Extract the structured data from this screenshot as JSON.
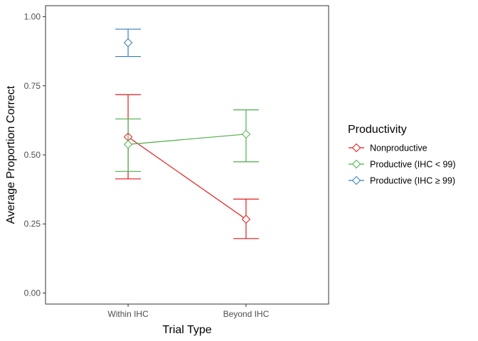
{
  "chart_data": {
    "type": "line",
    "xlabel": "Trial Type",
    "ylabel": "Average Proportion Correct",
    "categories": [
      "Within IHC",
      "Beyond IHC"
    ],
    "ylim": [
      -0.04,
      1.04
    ],
    "yticks": [
      0.0,
      0.25,
      0.5,
      0.75,
      1.0
    ],
    "ytick_labels": [
      "0.00",
      "0.25",
      "0.50",
      "0.75",
      "1.00"
    ],
    "grid": false,
    "legend": {
      "title": "Productivity",
      "position": "right"
    },
    "series": [
      {
        "name": "Nonproductive",
        "color": "#e41a1c",
        "points": [
          {
            "x": "Within IHC",
            "y": 0.565,
            "ymin": 0.413,
            "ymax": 0.718
          },
          {
            "x": "Beyond IHC",
            "y": 0.267,
            "ymin": 0.197,
            "ymax": 0.34
          }
        ]
      },
      {
        "name": "Productive (IHC < 99)",
        "color": "#4daf4a",
        "points": [
          {
            "x": "Within IHC",
            "y": 0.538,
            "ymin": 0.44,
            "ymax": 0.63
          },
          {
            "x": "Beyond IHC",
            "y": 0.575,
            "ymin": 0.475,
            "ymax": 0.663
          }
        ]
      },
      {
        "name": "Productive (IHC ≥ 99)",
        "color": "#377eb8",
        "points": [
          {
            "x": "Within IHC",
            "y": 0.906,
            "ymin": 0.856,
            "ymax": 0.955
          }
        ]
      }
    ]
  }
}
